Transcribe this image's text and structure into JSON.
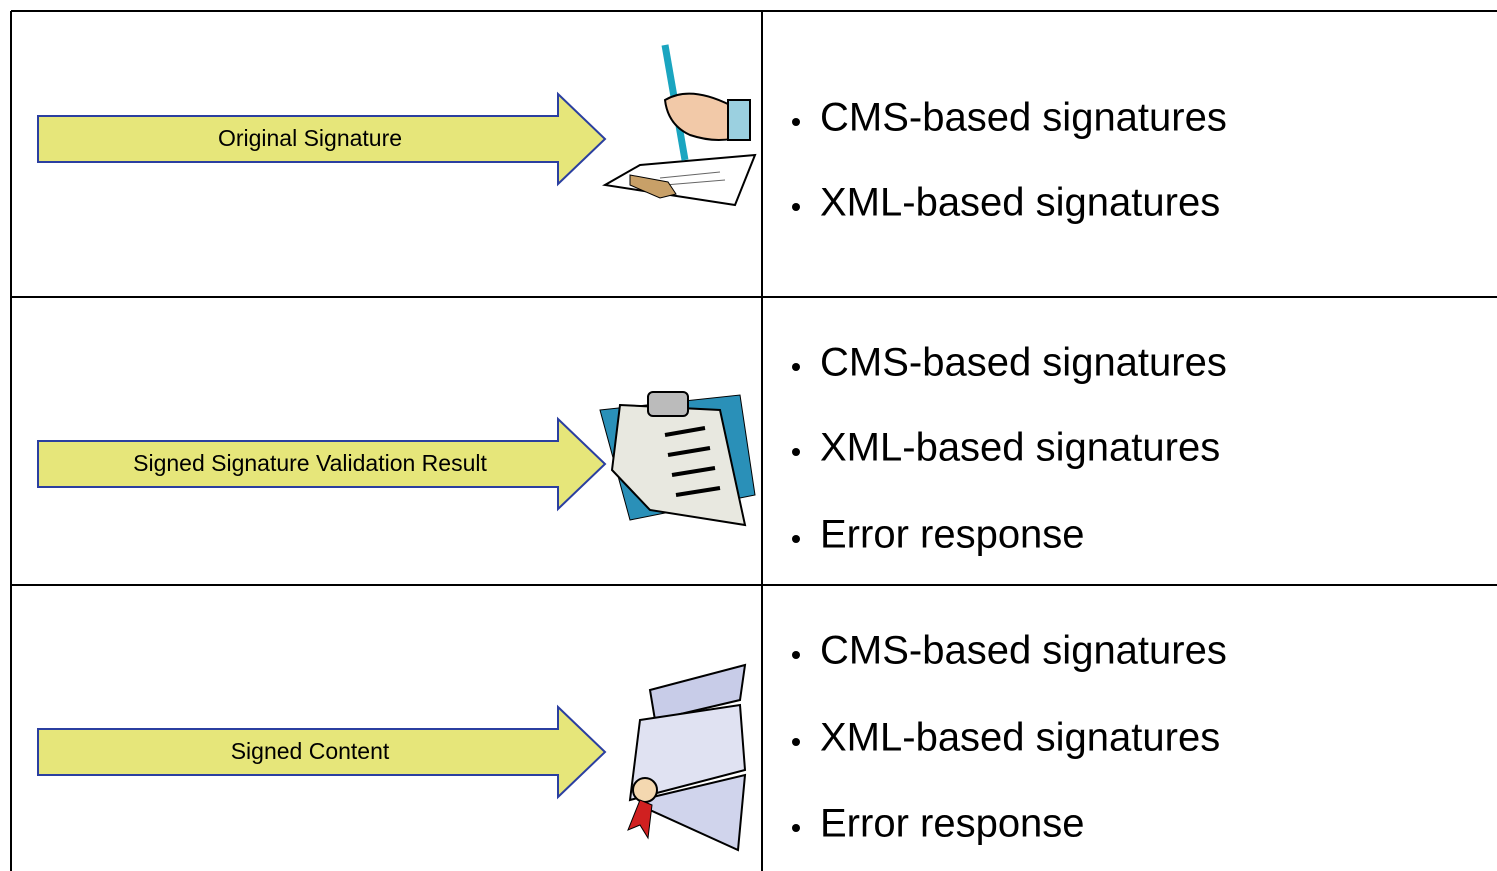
{
  "rows": [
    {
      "label": "Original Signature",
      "items": [
        "CMS-based signatures",
        "XML-based signatures"
      ]
    },
    {
      "label": "Signed Signature Validation Result",
      "items": [
        "CMS-based signatures",
        "XML-based signatures",
        "Error response"
      ]
    },
    {
      "label": "Signed Content",
      "items": [
        "CMS-based signatures",
        "XML-based signatures",
        "Error response"
      ]
    }
  ]
}
